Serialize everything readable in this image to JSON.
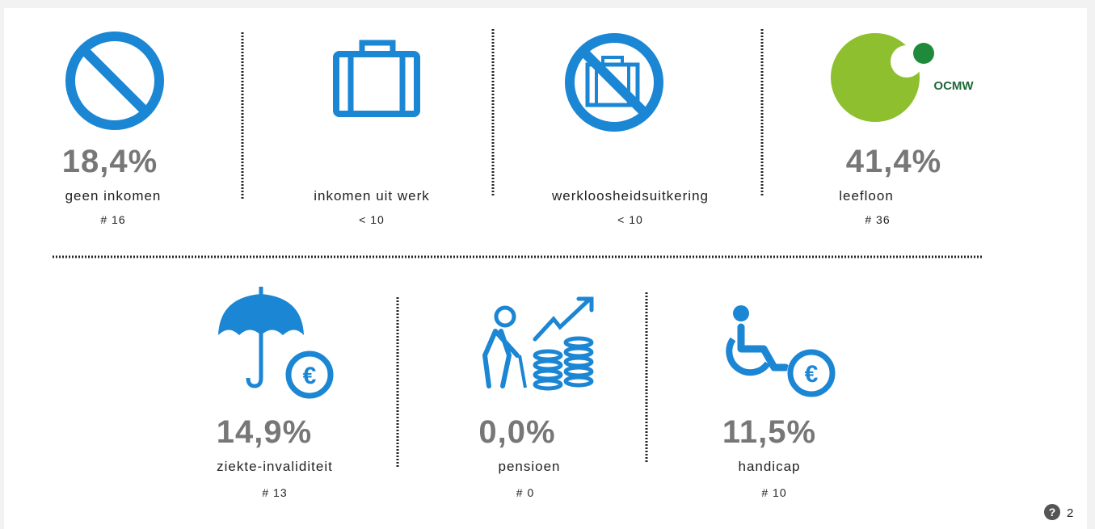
{
  "items": [
    {
      "percent": "18,4%",
      "label": "geen inkomen",
      "count": "# 16"
    },
    {
      "label": "inkomen uit werk",
      "count": "< 10"
    },
    {
      "label": "werkloosheidsuitkering",
      "count": "< 10"
    },
    {
      "percent": "41,4%",
      "label": "leefloon",
      "count": "# 36",
      "logo": "OCMW"
    },
    {
      "percent": "14,9%",
      "label": "ziekte-invaliditeit",
      "count": "# 13"
    },
    {
      "percent": "0,0%",
      "label": "pensioen",
      "count": "# 0"
    },
    {
      "percent": "11,5%",
      "label": "handicap",
      "count": "# 10"
    }
  ],
  "footer": {
    "icon": "?",
    "page": "2"
  }
}
